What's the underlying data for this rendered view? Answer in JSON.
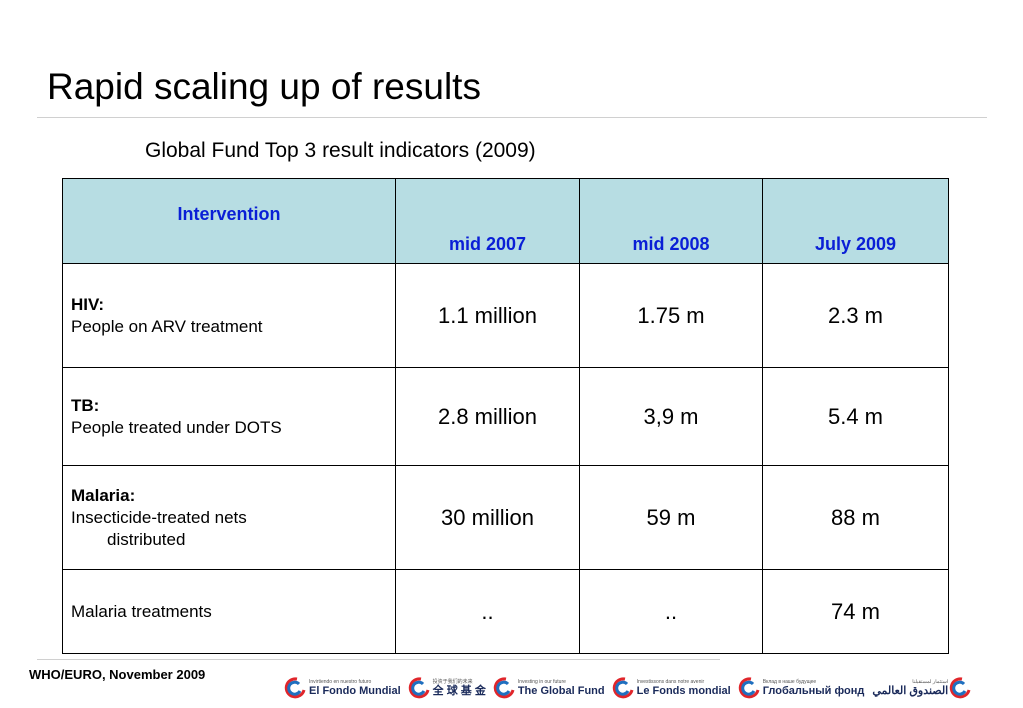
{
  "slide": {
    "title": "Rapid scaling up of results",
    "subtitle": "Global Fund Top 3 result indicators (2009)",
    "footer": "WHO/EURO, November 2009"
  },
  "table": {
    "headers": [
      "Intervention",
      "mid 2007",
      "mid 2008",
      "July 2009"
    ],
    "rows": [
      {
        "head": "HIV:",
        "desc": "People on ARV treatment",
        "values": [
          "1.1 million",
          "1.75 m",
          "2.3 m"
        ]
      },
      {
        "head": "TB:",
        "desc": "People treated under DOTS",
        "values": [
          "2.8 million",
          "3,9 m",
          "5.4 m"
        ]
      },
      {
        "head": "Malaria:",
        "desc": "Insecticide-treated nets",
        "desc2": "distributed",
        "values": [
          "30 million",
          "59 m",
          "88 m"
        ]
      },
      {
        "head": "",
        "desc": "Malaria treatments",
        "values": [
          "..",
          "..",
          "74 m"
        ]
      }
    ]
  },
  "logos": [
    {
      "tag": "Invirtiendo en nuestro futuro",
      "name": "El Fondo Mundial",
      "icon": "global-fund-logo-icon"
    },
    {
      "tag": "投资于我们的未来",
      "name": "全 球 基 金",
      "icon": "global-fund-logo-icon"
    },
    {
      "tag": "Investing in our future",
      "name": "The Global Fund",
      "icon": "global-fund-logo-icon"
    },
    {
      "tag": "Investissons dans notre avenir",
      "name": "Le Fonds mondial",
      "icon": "global-fund-logo-icon"
    },
    {
      "tag": "Вклад в наше будущее",
      "name": "Глобальный фонд",
      "icon": "global-fund-logo-icon"
    },
    {
      "tag": "استثمار لمستقبلنا",
      "name": "الصندوق العالمي",
      "icon": "global-fund-logo-icon"
    }
  ],
  "colors": {
    "header_bg": "#b7dde3",
    "header_text": "#0a1fd6",
    "logo_red": "#e0262b",
    "logo_blue": "#1f6fbf"
  }
}
